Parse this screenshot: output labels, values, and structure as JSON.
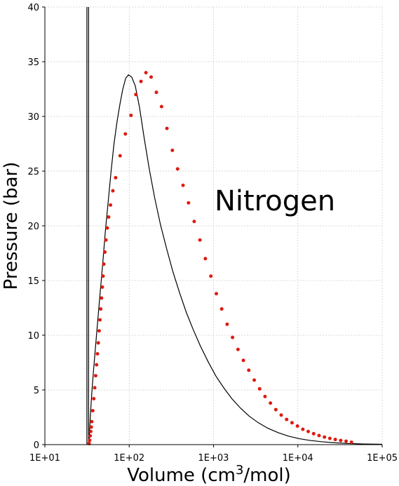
{
  "chart_data": {
    "type": "scatter",
    "title": "",
    "annotation": "Nitrogen",
    "xlabel_main": "Volume (cm",
    "xlabel_sup": "3",
    "xlabel_tail": "/mol)",
    "ylabel": "Pressure (bar)",
    "xscale": "log",
    "xlim": [
      10,
      100000
    ],
    "ylim": [
      0,
      40
    ],
    "grid": true,
    "legend": "none",
    "x_ticks": [
      {
        "value": 10,
        "label": "1E+01"
      },
      {
        "value": 100,
        "label": "1E+02"
      },
      {
        "value": 1000,
        "label": "1E+03"
      },
      {
        "value": 10000,
        "label": "1E+04"
      },
      {
        "value": 100000,
        "label": "1E+05"
      }
    ],
    "y_ticks": [
      0,
      5,
      10,
      15,
      20,
      25,
      30,
      35,
      40
    ],
    "colors": {
      "points": "#dd1c10",
      "line": "#000000",
      "grid": "#d8d8d8"
    },
    "series": [
      {
        "kind": "points",
        "x": [
          33.5,
          34,
          34.5,
          35,
          35.5,
          36,
          37,
          38,
          39,
          40,
          41,
          42,
          43,
          44,
          45,
          46,
          47,
          48,
          49,
          50,
          51.5,
          53,
          55,
          57,
          60,
          64,
          69,
          78,
          90,
          105,
          120,
          138,
          158,
          182,
          210,
          242,
          280,
          325,
          375,
          435,
          505,
          590,
          690,
          800,
          930,
          1080,
          1250,
          1450,
          1680,
          1950,
          2260,
          2620,
          3040,
          3520,
          4080,
          4730,
          5480,
          6350,
          7360,
          8530,
          9890,
          11460,
          13280,
          15390,
          17840,
          20680,
          23970,
          27780,
          32200,
          37320,
          43260
        ],
        "y": [
          0.1,
          0.4,
          0.8,
          1.2,
          1.6,
          2.1,
          3.1,
          4.2,
          5.2,
          6.3,
          7.3,
          8.3,
          9.3,
          10.4,
          11.4,
          12.4,
          13.4,
          14.4,
          15.4,
          16.5,
          17.6,
          18.7,
          19.8,
          20.8,
          21.9,
          23.2,
          24.4,
          26.4,
          28.4,
          30.1,
          32.0,
          33.2,
          34.0,
          33.6,
          32.2,
          30.9,
          28.9,
          26.9,
          25.2,
          23.7,
          22.1,
          20.4,
          18.7,
          17.0,
          15.4,
          13.8,
          12.4,
          11.0,
          9.8,
          8.7,
          7.7,
          6.8,
          5.9,
          5.1,
          4.4,
          3.8,
          3.2,
          2.7,
          2.3,
          2.0,
          1.7,
          1.4,
          1.2,
          1.0,
          0.83,
          0.69,
          0.57,
          0.47,
          0.38,
          0.31,
          0.22
        ]
      },
      {
        "kind": "line",
        "x": [
          33.2,
          33.6,
          34.2,
          35,
          36,
          37.5,
          39.5,
          42,
          45,
          48.5,
          52,
          56.5,
          61,
          66,
          72,
          78,
          84,
          91,
          98,
          107,
          118,
          132,
          150,
          172,
          200,
          235,
          278,
          330,
          395,
          475,
          575,
          700,
          860,
          1060,
          1320,
          1650,
          2080,
          2650,
          3400,
          4400,
          5800,
          7700,
          10300,
          14000,
          19500,
          27500,
          40000,
          60000,
          100000
        ],
        "y": [
          0.2,
          0.9,
          1.9,
          3.2,
          4.7,
          6.5,
          8.6,
          11.0,
          13.7,
          16.5,
          19.4,
          22.3,
          25.0,
          27.5,
          29.6,
          31.2,
          32.5,
          33.5,
          33.8,
          33.6,
          32.8,
          30.9,
          28.1,
          25.3,
          22.6,
          20.1,
          17.9,
          15.8,
          13.9,
          12.1,
          10.5,
          9.0,
          7.6,
          6.3,
          5.2,
          4.2,
          3.35,
          2.6,
          2.0,
          1.5,
          1.1,
          0.78,
          0.55,
          0.38,
          0.26,
          0.17,
          0.1,
          0.06,
          0.03
        ]
      },
      {
        "kind": "line",
        "x": [
          31.5,
          31.5
        ],
        "y": [
          0,
          40
        ]
      },
      {
        "kind": "line",
        "x": [
          33.0,
          33.0
        ],
        "y": [
          0,
          40
        ]
      }
    ]
  }
}
